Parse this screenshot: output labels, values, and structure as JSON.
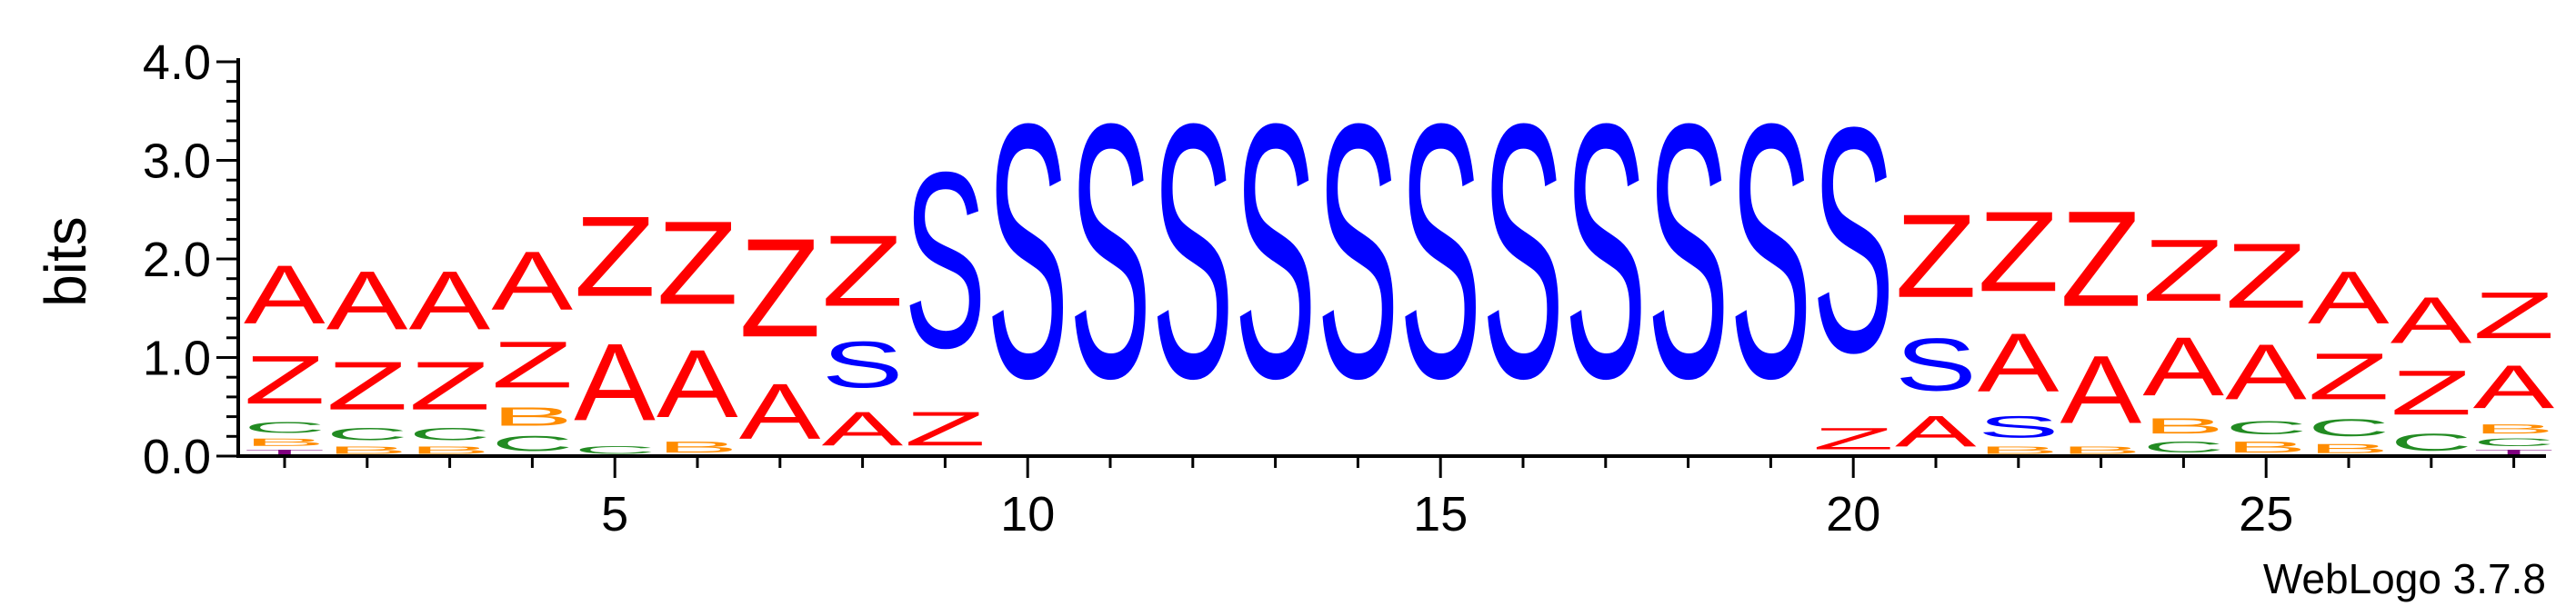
{
  "chart_data": {
    "type": "sequence_logo",
    "ylabel": "bits",
    "ylim": [
      0,
      4.0
    ],
    "yticks": [
      "0.0",
      "1.0",
      "2.0",
      "3.0",
      "4.0"
    ],
    "xticks": [
      5,
      10,
      15,
      20,
      25
    ],
    "credit": "WebLogo 3.7.8",
    "colors": {
      "A": "#ff0000",
      "Z": "#ff0000",
      "S": "#0000ff",
      "C": "#228b22",
      "B": "#ff8c00",
      "T": "#800080"
    },
    "positions": [
      {
        "pos": 1,
        "stack": [
          [
            "T",
            0.08
          ],
          [
            "B",
            0.12
          ],
          [
            "C",
            0.18
          ],
          [
            "Z",
            0.78
          ],
          [
            "A",
            0.95
          ]
        ]
      },
      {
        "pos": 2,
        "stack": [
          [
            "B",
            0.12
          ],
          [
            "C",
            0.2
          ],
          [
            "Z",
            0.78
          ],
          [
            "A",
            0.95
          ]
        ]
      },
      {
        "pos": 3,
        "stack": [
          [
            "B",
            0.12
          ],
          [
            "C",
            0.2
          ],
          [
            "Z",
            0.78
          ],
          [
            "A",
            0.95
          ]
        ]
      },
      {
        "pos": 4,
        "stack": [
          [
            "C",
            0.25
          ],
          [
            "B",
            0.3
          ],
          [
            "Z",
            0.75
          ],
          [
            "A",
            0.95
          ]
        ]
      },
      {
        "pos": 5,
        "stack": [
          [
            "C",
            0.12
          ],
          [
            "A",
            1.25
          ],
          [
            "Z",
            1.3
          ]
        ]
      },
      {
        "pos": 6,
        "stack": [
          [
            "B",
            0.18
          ],
          [
            "A",
            1.1
          ],
          [
            "Z",
            1.35
          ]
        ]
      },
      {
        "pos": 7,
        "stack": [
          [
            "A",
            0.9
          ],
          [
            "Z",
            1.6
          ]
        ]
      },
      {
        "pos": 8,
        "stack": [
          [
            "A",
            0.55
          ],
          [
            "S",
            0.75
          ],
          [
            "Z",
            1.15
          ]
        ]
      },
      {
        "pos": 9,
        "stack": [
          [
            "Z",
            0.55
          ],
          [
            "S",
            2.85
          ]
        ]
      },
      {
        "pos": 10,
        "stack": [
          [
            "S",
            4.12
          ]
        ]
      },
      {
        "pos": 11,
        "stack": [
          [
            "S",
            4.12
          ]
        ]
      },
      {
        "pos": 12,
        "stack": [
          [
            "S",
            4.12
          ]
        ]
      },
      {
        "pos": 13,
        "stack": [
          [
            "S",
            4.12
          ]
        ]
      },
      {
        "pos": 14,
        "stack": [
          [
            "S",
            4.12
          ]
        ]
      },
      {
        "pos": 15,
        "stack": [
          [
            "S",
            4.12
          ]
        ]
      },
      {
        "pos": 16,
        "stack": [
          [
            "S",
            4.12
          ]
        ]
      },
      {
        "pos": 17,
        "stack": [
          [
            "S",
            4.12
          ]
        ]
      },
      {
        "pos": 18,
        "stack": [
          [
            "S",
            4.12
          ]
        ]
      },
      {
        "pos": 19,
        "stack": [
          [
            "S",
            4.12
          ]
        ]
      },
      {
        "pos": 20,
        "stack": [
          [
            "Z",
            0.35
          ],
          [
            "S",
            3.65
          ]
        ]
      },
      {
        "pos": 21,
        "stack": [
          [
            "A",
            0.5
          ],
          [
            "S",
            0.85
          ],
          [
            "Z",
            1.35
          ]
        ]
      },
      {
        "pos": 22,
        "stack": [
          [
            "B",
            0.12
          ],
          [
            "S",
            0.35
          ],
          [
            "A",
            0.95
          ],
          [
            "Z",
            1.3
          ]
        ]
      },
      {
        "pos": 23,
        "stack": [
          [
            "B",
            0.12
          ],
          [
            "A",
            1.1
          ],
          [
            "Z",
            1.55
          ]
        ]
      },
      {
        "pos": 24,
        "stack": [
          [
            "C",
            0.18
          ],
          [
            "B",
            0.25
          ],
          [
            "A",
            0.95
          ],
          [
            "Z",
            1.0
          ]
        ]
      },
      {
        "pos": 25,
        "stack": [
          [
            "B",
            0.18
          ],
          [
            "C",
            0.22
          ],
          [
            "A",
            0.9
          ],
          [
            "Z",
            1.05
          ]
        ]
      },
      {
        "pos": 26,
        "stack": [
          [
            "B",
            0.15
          ],
          [
            "C",
            0.28
          ],
          [
            "Z",
            0.75
          ],
          [
            "A",
            0.85
          ]
        ]
      },
      {
        "pos": 27,
        "stack": [
          [
            "C",
            0.28
          ],
          [
            "Z",
            0.72
          ],
          [
            "A",
            0.75
          ]
        ]
      },
      {
        "pos": 28,
        "stack": [
          [
            "T",
            0.08
          ],
          [
            "C",
            0.12
          ],
          [
            "B",
            0.15
          ],
          [
            "A",
            0.7
          ],
          [
            "Z",
            0.75
          ]
        ]
      }
    ]
  }
}
